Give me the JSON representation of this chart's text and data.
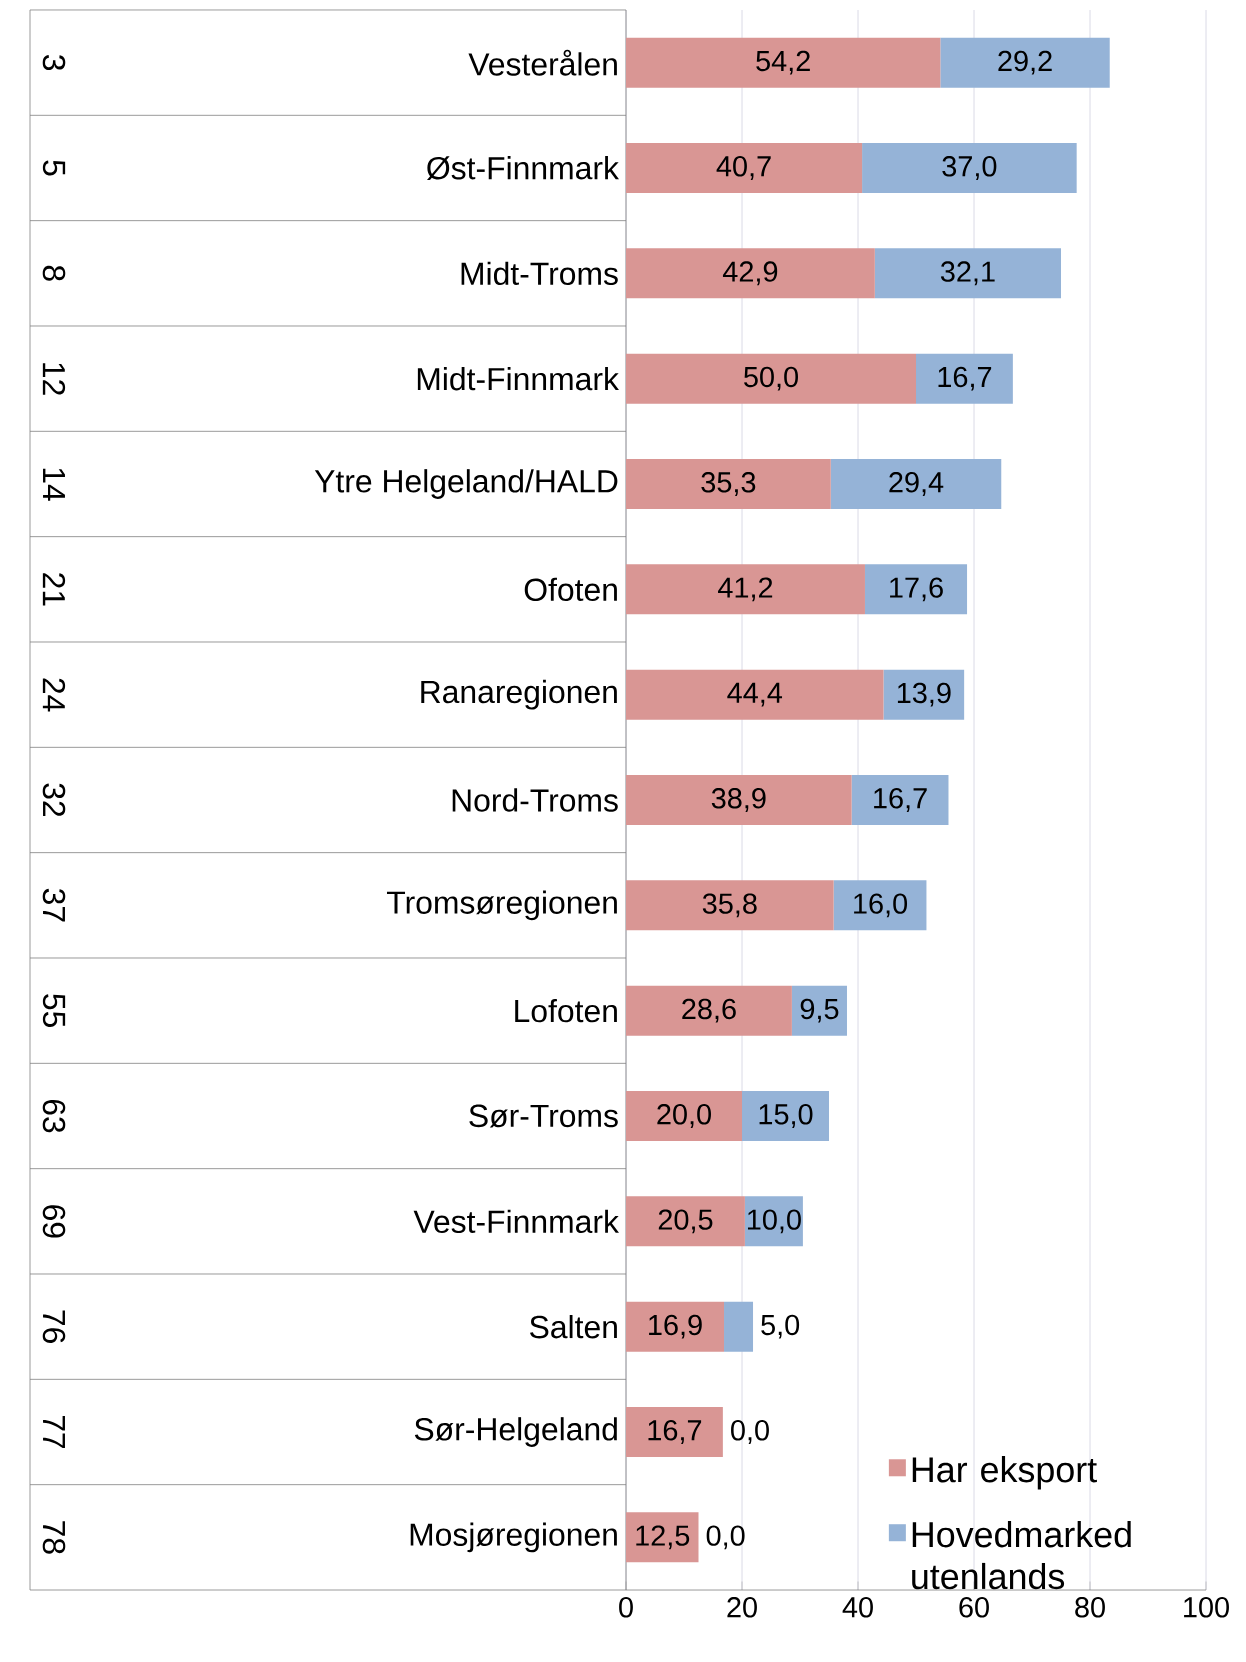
{
  "chart_data": {
    "type": "bar",
    "orientation": "horizontal",
    "stacked": true,
    "categories": [
      "Vesterålen",
      "Øst-Finnmark",
      "Midt-Troms",
      "Midt-Finnmark",
      "Ytre Helgeland/HALD",
      "Ofoten",
      "Ranaregionen",
      "Nord-Troms",
      "Tromsøregionen",
      "Lofoten",
      "Sør-Troms",
      "Vest-Finnmark",
      "Salten",
      "Sør-Helgeland",
      "Mosjøregionen"
    ],
    "series": [
      {
        "name": "Har eksport",
        "color": "#d99694",
        "values": [
          54.2,
          40.7,
          42.9,
          50.0,
          35.3,
          41.2,
          44.4,
          38.9,
          35.8,
          28.6,
          20.0,
          20.5,
          16.9,
          16.7,
          12.5
        ],
        "value_labels": [
          "54,2",
          "40,7",
          "42,9",
          "50,0",
          "35,3",
          "41,2",
          "44,4",
          "38,9",
          "35,8",
          "28,6",
          "20,0",
          "20,5",
          "16,9",
          "16,7",
          "12,5"
        ]
      },
      {
        "name": "Hovedmarked utenlands",
        "color": "#95b3d7",
        "values": [
          29.2,
          37.0,
          32.1,
          16.7,
          29.4,
          17.6,
          13.9,
          16.7,
          16.0,
          9.5,
          15.0,
          10.0,
          5.0,
          0.0,
          0.0
        ],
        "value_labels": [
          "29,2",
          "37,0",
          "32,1",
          "16,7",
          "29,4",
          "17,6",
          "13,9",
          "16,7",
          "16,0",
          "9,5",
          "15,0",
          "10,0",
          "5,0",
          "0,0",
          "0,0"
        ]
      }
    ],
    "annotations": [
      "3",
      "5",
      "8",
      "12",
      "14",
      "21",
      "24",
      "32",
      "37",
      "55",
      "63",
      "69",
      "76",
      "77",
      "78"
    ],
    "xlim": [
      0,
      100
    ],
    "xticks": [
      0,
      20,
      40,
      60,
      80,
      100
    ],
    "grid": "x",
    "legend": "bottom right"
  }
}
